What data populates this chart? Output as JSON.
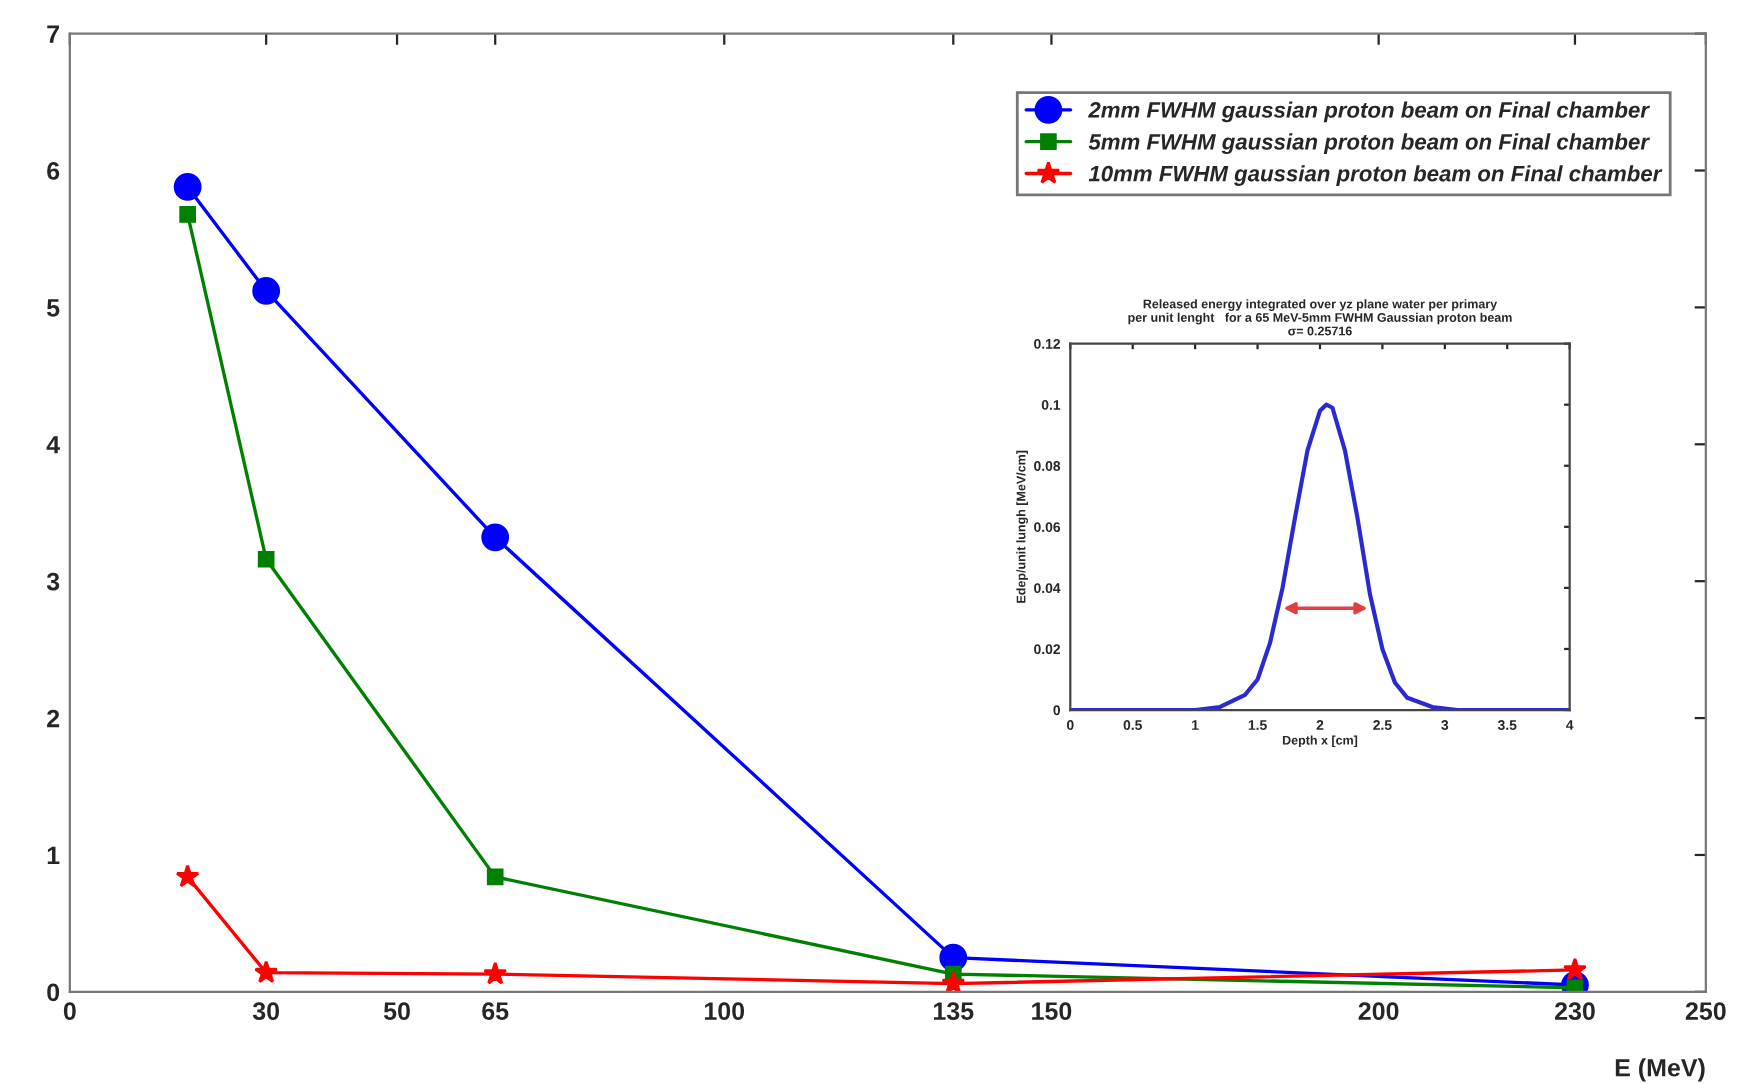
{
  "chart_data": [
    {
      "type": "line",
      "xlabel": "E (MeV)",
      "x": [
        18,
        30,
        65,
        135,
        230
      ],
      "xlim": [
        0,
        250
      ],
      "xticks": [
        0,
        30,
        50,
        65,
        100,
        135,
        150,
        200,
        230,
        250
      ],
      "ylim": [
        0,
        7
      ],
      "yticks": [
        0,
        1,
        2,
        3,
        4,
        5,
        6,
        7
      ],
      "grid": false,
      "legend": "top right",
      "series": [
        {
          "name": "2mm FWHM gaussian proton beam on Final chamber",
          "color": "#0000ff",
          "marker": "circle",
          "values": [
            5.88,
            5.12,
            3.32,
            0.25,
            0.05
          ]
        },
        {
          "name": "5mm FWHM gaussian proton beam on Final chamber",
          "color": "#008000",
          "marker": "square",
          "values": [
            5.68,
            3.16,
            0.84,
            0.13,
            0.03
          ]
        },
        {
          "name": "10mm FWHM gaussian proton beam on Final chamber",
          "color": "#ff0000",
          "marker": "star",
          "values": [
            0.84,
            0.14,
            0.13,
            0.06,
            0.16
          ]
        }
      ]
    },
    {
      "type": "line",
      "title": "Released energy integrated over yz plane water per primary\nper unit lenght   for a 65 MeV-5mm FWHM Gaussian proton beam\nσ= 0.25716",
      "xlabel": "Depth x [cm]",
      "ylabel": "Edep/unit lungh [MeV/cm]",
      "xlim": [
        0,
        4
      ],
      "xticks": [
        0,
        0.5,
        1,
        1.5,
        2,
        2.5,
        3,
        3.5,
        4
      ],
      "ylim": [
        0,
        0.12
      ],
      "yticks": [
        0,
        0.02,
        0.04,
        0.06,
        0.08,
        0.1,
        0.12
      ],
      "grid": false,
      "series": [
        {
          "color": "#2a2ad0",
          "x": [
            0,
            1.0,
            1.2,
            1.4,
            1.5,
            1.6,
            1.7,
            1.8,
            1.9,
            2.0,
            2.05,
            2.1,
            2.2,
            2.3,
            2.4,
            2.5,
            2.6,
            2.7,
            2.9,
            3.1,
            4
          ],
          "values": [
            0,
            0,
            0.001,
            0.005,
            0.01,
            0.022,
            0.04,
            0.063,
            0.085,
            0.098,
            0.1,
            0.099,
            0.085,
            0.063,
            0.038,
            0.02,
            0.009,
            0.004,
            0.001,
            0,
            0
          ]
        }
      ]
    }
  ]
}
